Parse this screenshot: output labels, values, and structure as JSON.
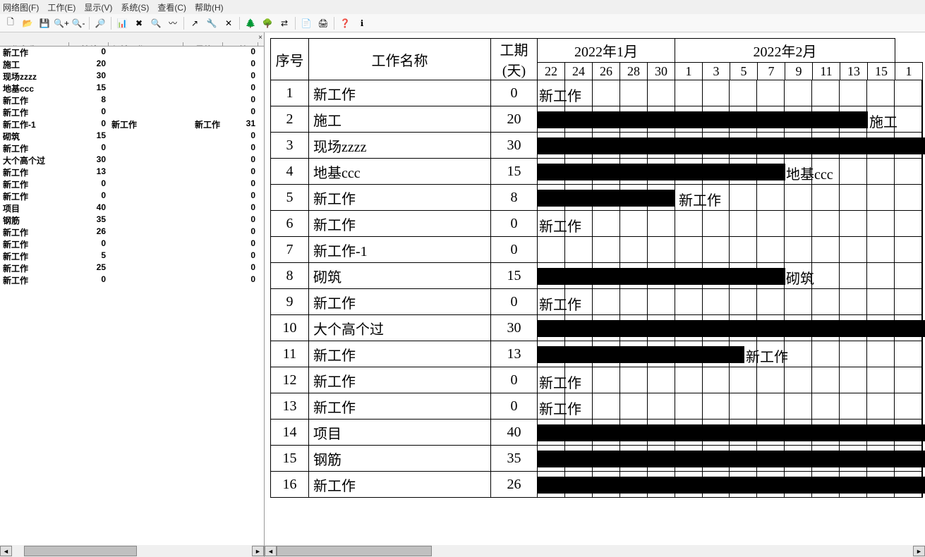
{
  "menu": {
    "items": [
      "网络图(F)",
      "工作(E)",
      "显示(V)",
      "系统(S)",
      "查看(C)",
      "帮助(H)"
    ]
  },
  "toolbar": {
    "buttons": [
      "new",
      "open",
      "save",
      "zoomin",
      "zoomout",
      "sep",
      "find",
      "sep",
      "chart",
      "delete",
      "search",
      "path",
      "sep",
      "arrow",
      "tools",
      "cross",
      "sep",
      "treeL",
      "treeR",
      "swap",
      "sep",
      "preview",
      "print",
      "sep",
      "help",
      "about"
    ]
  },
  "leftPanel": {
    "headers": [
      "工作名称",
      "持续...",
      "紧前工作",
      "最终...",
      "开始..."
    ],
    "rows": [
      {
        "name": "新工作",
        "dur": "0",
        "pred": "",
        "final": "",
        "start": "0"
      },
      {
        "name": "施工",
        "dur": "20",
        "pred": "",
        "final": "",
        "start": "0"
      },
      {
        "name": "现场zzzz",
        "dur": "30",
        "pred": "",
        "final": "",
        "start": "0"
      },
      {
        "name": "地基ccc",
        "dur": "15",
        "pred": "",
        "final": "",
        "start": "0"
      },
      {
        "name": "新工作",
        "dur": "8",
        "pred": "",
        "final": "",
        "start": "0"
      },
      {
        "name": "新工作",
        "dur": "0",
        "pred": "",
        "final": "",
        "start": "0"
      },
      {
        "name": "新工作-1",
        "dur": "0",
        "pred": "新工作",
        "final": "新工作",
        "start": "31"
      },
      {
        "name": "砌筑",
        "dur": "15",
        "pred": "",
        "final": "",
        "start": "0"
      },
      {
        "name": "新工作",
        "dur": "0",
        "pred": "",
        "final": "",
        "start": "0"
      },
      {
        "name": "大个高个过",
        "dur": "30",
        "pred": "",
        "final": "",
        "start": "0"
      },
      {
        "name": "新工作",
        "dur": "13",
        "pred": "",
        "final": "",
        "start": "0"
      },
      {
        "name": "新工作",
        "dur": "0",
        "pred": "",
        "final": "",
        "start": "0"
      },
      {
        "name": "新工作",
        "dur": "0",
        "pred": "",
        "final": "",
        "start": "0"
      },
      {
        "name": "项目",
        "dur": "40",
        "pred": "",
        "final": "",
        "start": "0"
      },
      {
        "name": "钢筋",
        "dur": "35",
        "pred": "",
        "final": "",
        "start": "0"
      },
      {
        "name": "新工作",
        "dur": "26",
        "pred": "",
        "final": "",
        "start": "0"
      },
      {
        "name": "新工作",
        "dur": "0",
        "pred": "",
        "final": "",
        "start": "0"
      },
      {
        "name": "新工作",
        "dur": "5",
        "pred": "",
        "final": "",
        "start": "0"
      },
      {
        "name": "新工作",
        "dur": "25",
        "pred": "",
        "final": "",
        "start": "0"
      },
      {
        "name": "新工作",
        "dur": "0",
        "pred": "",
        "final": "",
        "start": "0"
      }
    ]
  },
  "gantt": {
    "seqHeader": "序号",
    "nameHeader": "工作名称",
    "durHeader": "工期\n(天)",
    "months": [
      "2022年1月",
      "2022年2月"
    ],
    "monthSpans": [
      5,
      8
    ],
    "dates": [
      "22",
      "24",
      "26",
      "28",
      "30",
      "1",
      "3",
      "5",
      "7",
      "9",
      "11",
      "13",
      "15",
      "1"
    ],
    "dayWidth": 19.5,
    "barColor": "#000000",
    "rows": [
      {
        "seq": "1",
        "name": "新工作",
        "dur": "0",
        "barDays": 0,
        "label": "新工作",
        "labelOffset": 2
      },
      {
        "seq": "2",
        "name": "施工",
        "dur": "20",
        "barDays": 24,
        "label": "施工",
        "labelOffset": 470
      },
      {
        "seq": "3",
        "name": "现场zzzz",
        "dur": "30",
        "barDays": 40,
        "label": "",
        "labelOffset": 0
      },
      {
        "seq": "4",
        "name": "地基ccc",
        "dur": "15",
        "barDays": 18,
        "label": "地基ccc",
        "labelOffset": 352
      },
      {
        "seq": "5",
        "name": "新工作",
        "dur": "8",
        "barDays": 10,
        "label": "新工作",
        "labelOffset": 200
      },
      {
        "seq": "6",
        "name": "新工作",
        "dur": "0",
        "barDays": 0,
        "label": "新工作",
        "labelOffset": 2
      },
      {
        "seq": "7",
        "name": "新工作-1",
        "dur": "0",
        "barDays": 0,
        "label": "",
        "labelOffset": 0
      },
      {
        "seq": "8",
        "name": "砌筑",
        "dur": "15",
        "barDays": 18,
        "label": "砌筑",
        "labelOffset": 352
      },
      {
        "seq": "9",
        "name": "新工作",
        "dur": "0",
        "barDays": 0,
        "label": "新工作",
        "labelOffset": 2
      },
      {
        "seq": "10",
        "name": "大个高个过",
        "dur": "30",
        "barDays": 40,
        "label": "",
        "labelOffset": 0
      },
      {
        "seq": "11",
        "name": "新工作",
        "dur": "13",
        "barDays": 15,
        "label": "新工作",
        "labelOffset": 295
      },
      {
        "seq": "12",
        "name": "新工作",
        "dur": "0",
        "barDays": 0,
        "label": "新工作",
        "labelOffset": 2
      },
      {
        "seq": "13",
        "name": "新工作",
        "dur": "0",
        "barDays": 0,
        "label": "新工作",
        "labelOffset": 2
      },
      {
        "seq": "14",
        "name": "项目",
        "dur": "40",
        "barDays": 40,
        "label": "",
        "labelOffset": 0
      },
      {
        "seq": "15",
        "name": "钢筋",
        "dur": "35",
        "barDays": 40,
        "label": "",
        "labelOffset": 0
      },
      {
        "seq": "16",
        "name": "新工作",
        "dur": "26",
        "barDays": 40,
        "label": "",
        "labelOffset": 0
      }
    ]
  }
}
